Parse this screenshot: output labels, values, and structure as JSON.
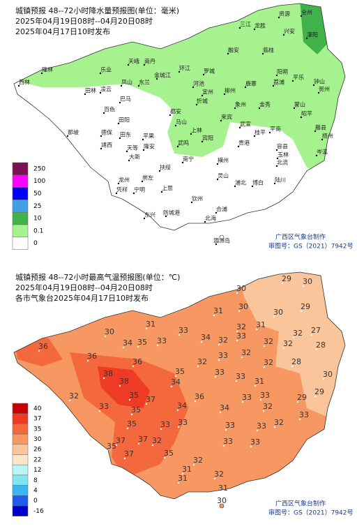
{
  "maps": [
    {
      "title": "城镇预报 48--72小时降水量预报图(单位：毫米)",
      "period": "2025年04月19日08时--04月20日08时",
      "issued": "2025年04月17日10时发布",
      "legend": [
        {
          "label": "250",
          "color": "#7d0f53"
        },
        {
          "label": "100",
          "color": "#ff00ff"
        },
        {
          "label": "50",
          "color": "#0000fe"
        },
        {
          "label": "25",
          "color": "#3fa0e8"
        },
        {
          "label": "10",
          "color": "#3fb34a"
        },
        {
          "label": "0.1",
          "color": "#a6f28f"
        },
        {
          "label": "0",
          "color": "#ffffff"
        }
      ],
      "places": [
        "资源",
        "全州",
        "兴安",
        "灌阳",
        "三江",
        "龙胜",
        "融安",
        "临桂",
        "西林",
        "乐业",
        "天峨",
        "南丹",
        "环江",
        "罗城",
        "凤山",
        "东兰",
        "河池",
        "金城江",
        "宜州",
        "柳州",
        "鹿寨",
        "阳朔",
        "荔浦",
        "平乐",
        "钟山",
        "贺州",
        "隆林",
        "田林",
        "凌云",
        "巴马",
        "都安",
        "忻城",
        "象州",
        "金秀",
        "蒙山",
        "昭平",
        "百色",
        "田阳",
        "马山",
        "来宾",
        "武宣",
        "平南",
        "藤县",
        "德保",
        "田东",
        "上林",
        "宾阳",
        "贵港",
        "桂平",
        "梧州",
        "那坡",
        "靖西",
        "平果",
        "隆安",
        "武鸣",
        "岑溪",
        "天等",
        "大新",
        "南宁",
        "横州",
        "容县",
        "北流",
        "龙州",
        "崇左",
        "扶绥",
        "灵山",
        "浦北",
        "玉林",
        "陆川",
        "凭祥",
        "宁明",
        "上思",
        "钦州",
        "博白",
        "防城港",
        "东兴",
        "合浦",
        "北海",
        "涠洲岛"
      ],
      "credit": "广西区气象台制作",
      "approval": "审图号：GS（2021）7942号"
    },
    {
      "title": "城镇预报 48--72小时最高气温预报图(单位：℃)",
      "period": "2025年04月19日08时--04月20日08时",
      "issued": "各市气象台2025年04月17日10时发布",
      "legend": [
        {
          "label": "40",
          "color": "#c80000"
        },
        {
          "label": "37",
          "color": "#ee3b25"
        },
        {
          "label": "35",
          "color": "#f4683d"
        },
        {
          "label": "30",
          "color": "#f79862"
        },
        {
          "label": "26",
          "color": "#fac59a"
        },
        {
          "label": "22",
          "color": "#fde6c8"
        },
        {
          "label": "12",
          "color": "#b9f5f5"
        },
        {
          "label": "8",
          "color": "#7fe6f0"
        },
        {
          "label": "4",
          "color": "#3cb4f0"
        },
        {
          "label": "0",
          "color": "#1e5cf0"
        },
        {
          "label": "-16",
          "color": "#0000c8"
        }
      ],
      "temps": [
        30,
        29,
        30,
        30,
        29,
        31,
        30,
        31,
        33,
        32,
        31,
        32,
        27,
        36,
        30,
        33,
        34,
        32,
        33,
        32,
        32,
        28,
        36,
        34,
        35,
        33,
        32,
        32,
        28,
        36,
        32,
        30,
        38,
        38,
        35,
        34,
        33,
        33,
        31,
        32,
        37,
        35,
        36,
        33,
        33,
        29,
        29,
        33,
        35,
        34,
        33,
        34,
        32,
        33,
        35,
        33,
        33,
        33,
        32,
        37,
        37,
        32,
        33,
        33,
        35,
        37,
        35,
        32,
        31,
        31,
        32,
        31,
        30
      ],
      "credit": "广西区气象台制作",
      "approval": "审图号：GS（2021）7942号"
    }
  ]
}
